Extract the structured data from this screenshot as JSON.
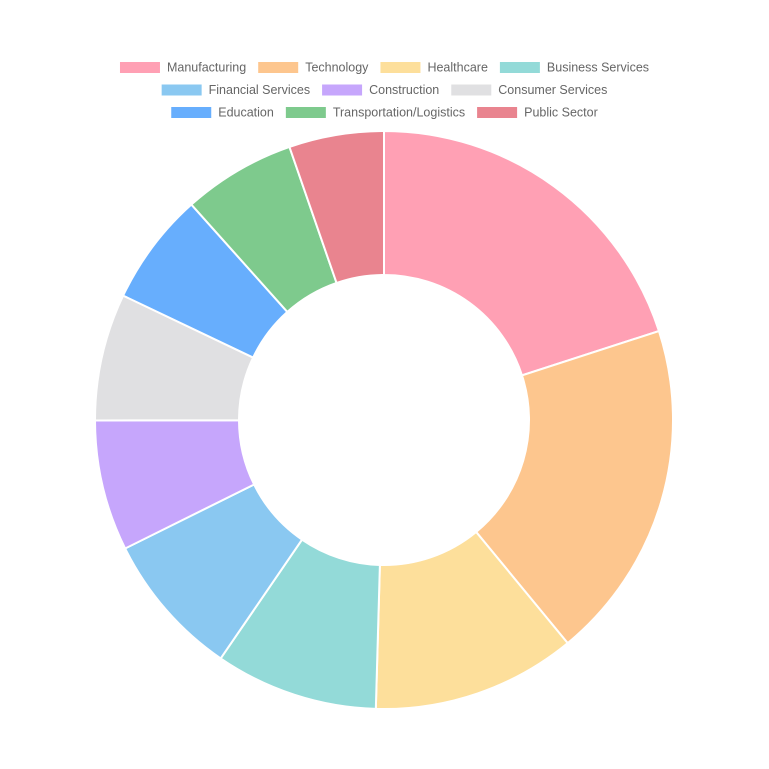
{
  "chart_data": {
    "type": "doughnut",
    "categories": [
      "Manufacturing",
      "Technology",
      "Healthcare",
      "Business Services",
      "Financial Services",
      "Construction",
      "Consumer Services",
      "Education",
      "Transportation/Logistics",
      "Public Sector"
    ],
    "values": [
      20,
      19,
      11.4,
      9.1,
      8.1,
      7.3,
      7.1,
      6.3,
      6.3,
      5.3
    ],
    "colors": [
      "#ffa0b4",
      "#fdc68e",
      "#fddf9b",
      "#93dad8",
      "#8ac8f1",
      "#c6a6fc",
      "#e0e0e2",
      "#67aefd",
      "#7eca8d",
      "#e9848f"
    ],
    "legend": "top"
  }
}
